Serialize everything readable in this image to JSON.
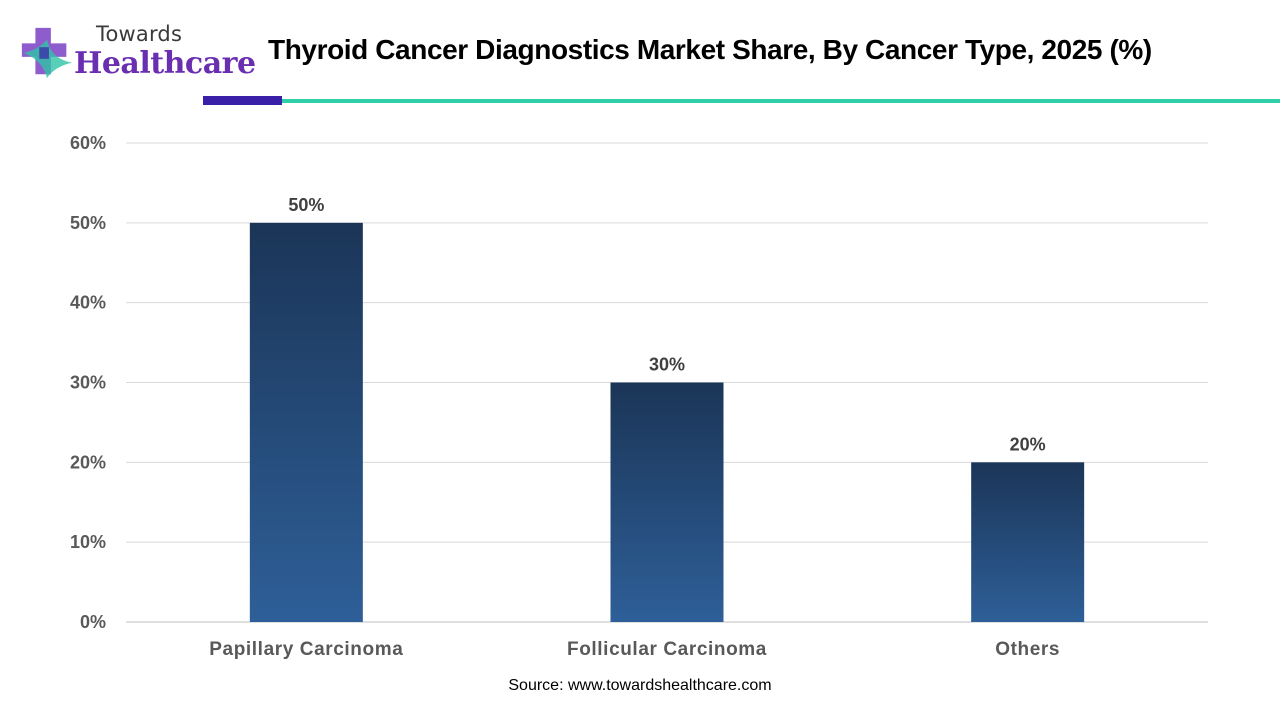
{
  "brand": {
    "logo_top": "Towards",
    "logo_main": "Healthcare",
    "logo_colors": [
      "#7b3fc4",
      "#2ec4a6",
      "#3a1fa8"
    ]
  },
  "header": {
    "title": "Thyroid Cancer Diagnostics Market Share, By Cancer Type, 2025 (%)",
    "accent_colors": {
      "purple": "#3a1fa8",
      "teal": "#2fcfa8"
    }
  },
  "chart_data": {
    "type": "bar",
    "title": "Thyroid Cancer Diagnostics Market Share, By Cancer Type, 2025 (%)",
    "categories": [
      "Papillary Carcinoma",
      "Follicular Carcinoma",
      "Others"
    ],
    "values": [
      50,
      30,
      20
    ],
    "data_labels": [
      "50%",
      "30%",
      "20%"
    ],
    "ylim": [
      0,
      60
    ],
    "yticks": [
      0,
      10,
      20,
      30,
      40,
      50,
      60
    ],
    "ytick_labels": [
      "0%",
      "10%",
      "20%",
      "30%",
      "40%",
      "50%",
      "60%"
    ],
    "xlabel": "",
    "ylabel": "",
    "grid": true,
    "legend": "none",
    "bar_gradient": [
      "#1b3557",
      "#2e5f98"
    ]
  },
  "source": "Source: www.towardshealthcare.com"
}
